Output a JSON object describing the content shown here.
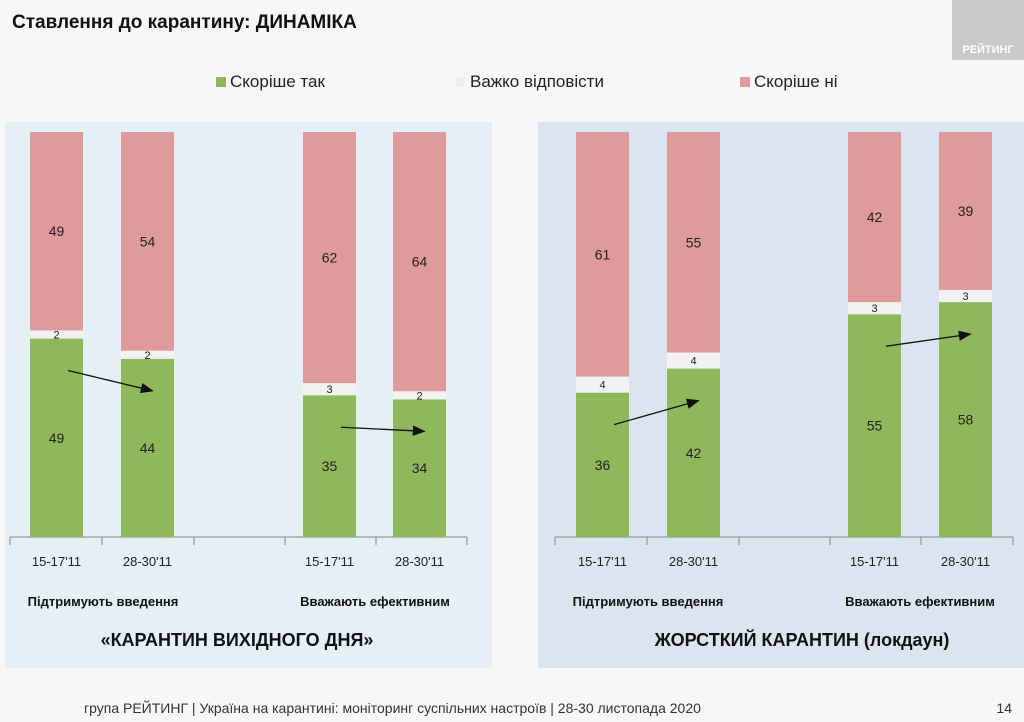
{
  "title": "Ставлення до карантину: ДИНАМІКА",
  "logo_text": "РЕЙТИНГ",
  "footer": "група РЕЙТИНГ | Україна на карантині: моніторинг суспільних настроїв | 28-30 листопада 2020",
  "page_number": "14",
  "chart_data": {
    "type": "bar",
    "stacked": true,
    "legend_position": "top",
    "legend": [
      "Скоріше так",
      "Важко відповісти",
      "Скоріше ні"
    ],
    "colors": {
      "yes": "#8fb85a",
      "dk": "#f2f2f2",
      "no": "#df9a9c",
      "panel_left": "#e5f0f5",
      "panel_right": "#dbe5f0"
    },
    "ylim": [
      0,
      100
    ],
    "sections": [
      {
        "label": "«КАРАНТИН ВИХІДНОГО ДНЯ»",
        "groups": [
          {
            "label": "Підтримують введення",
            "bars": [
              {
                "period": "15-17'11",
                "yes": 49,
                "dk": 2,
                "no": 49
              },
              {
                "period": "28-30'11",
                "yes": 44,
                "dk": 2,
                "no": 54
              }
            ]
          },
          {
            "label": "Вважають ефективним",
            "bars": [
              {
                "period": "15-17'11",
                "yes": 35,
                "dk": 3,
                "no": 62
              },
              {
                "period": "28-30'11",
                "yes": 34,
                "dk": 2,
                "no": 64
              }
            ]
          }
        ]
      },
      {
        "label": "ЖОРСТКИЙ КАРАНТИН (локдаун)",
        "groups": [
          {
            "label": "Підтримують введення",
            "bars": [
              {
                "period": "15-17'11",
                "yes": 36,
                "dk": 4,
                "no": 61
              },
              {
                "period": "28-30'11",
                "yes": 42,
                "dk": 4,
                "no": 55
              }
            ]
          },
          {
            "label": "Вважають ефективним",
            "bars": [
              {
                "period": "15-17'11",
                "yes": 55,
                "dk": 3,
                "no": 42
              },
              {
                "period": "28-30'11",
                "yes": 58,
                "dk": 3,
                "no": 39
              }
            ]
          }
        ]
      }
    ]
  }
}
